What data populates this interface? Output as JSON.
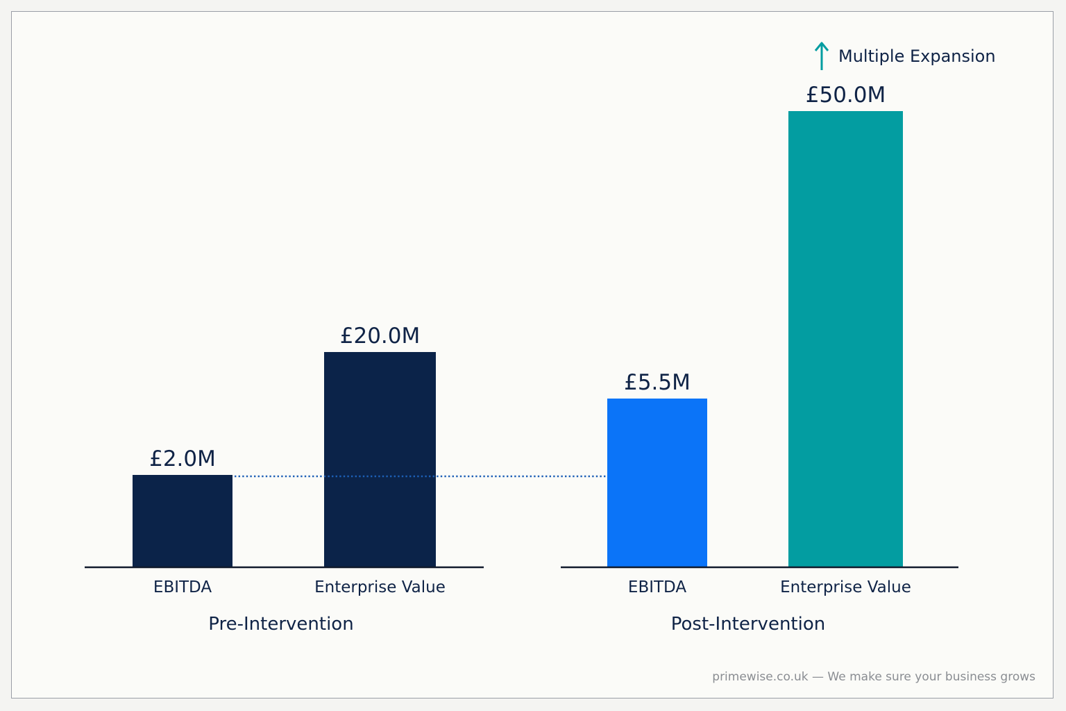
{
  "chart_data": {
    "type": "bar",
    "groups": [
      {
        "name": "Pre-Intervention",
        "bars": [
          {
            "category": "EBITDA",
            "value": 2.0,
            "label": "£2.0M",
            "color": "#0b2349"
          },
          {
            "category": "Enterprise Value",
            "value": 20.0,
            "label": "£20.0M",
            "color": "#0b2349"
          }
        ]
      },
      {
        "name": "Post-Intervention",
        "bars": [
          {
            "category": "EBITDA",
            "value": 5.5,
            "label": "£5.5M",
            "color": "#0b74f8"
          },
          {
            "category": "Enterprise Value",
            "value": 50.0,
            "label": "£50.0M",
            "color": "#039da1"
          }
        ]
      }
    ],
    "unit": "£M",
    "reference_line": {
      "style": "dotted",
      "at_bar": "Pre-Intervention EBITDA",
      "color": "#1d5fb5"
    },
    "annotation": {
      "text": "Multiple Expansion",
      "icon": "up-arrow-icon",
      "color": "#039da1",
      "on_bar": "Post-Intervention Enterprise Value"
    },
    "xlabel": "",
    "ylabel": "",
    "grid": false
  },
  "footer": "primewise.co.uk — We make sure your business grows"
}
